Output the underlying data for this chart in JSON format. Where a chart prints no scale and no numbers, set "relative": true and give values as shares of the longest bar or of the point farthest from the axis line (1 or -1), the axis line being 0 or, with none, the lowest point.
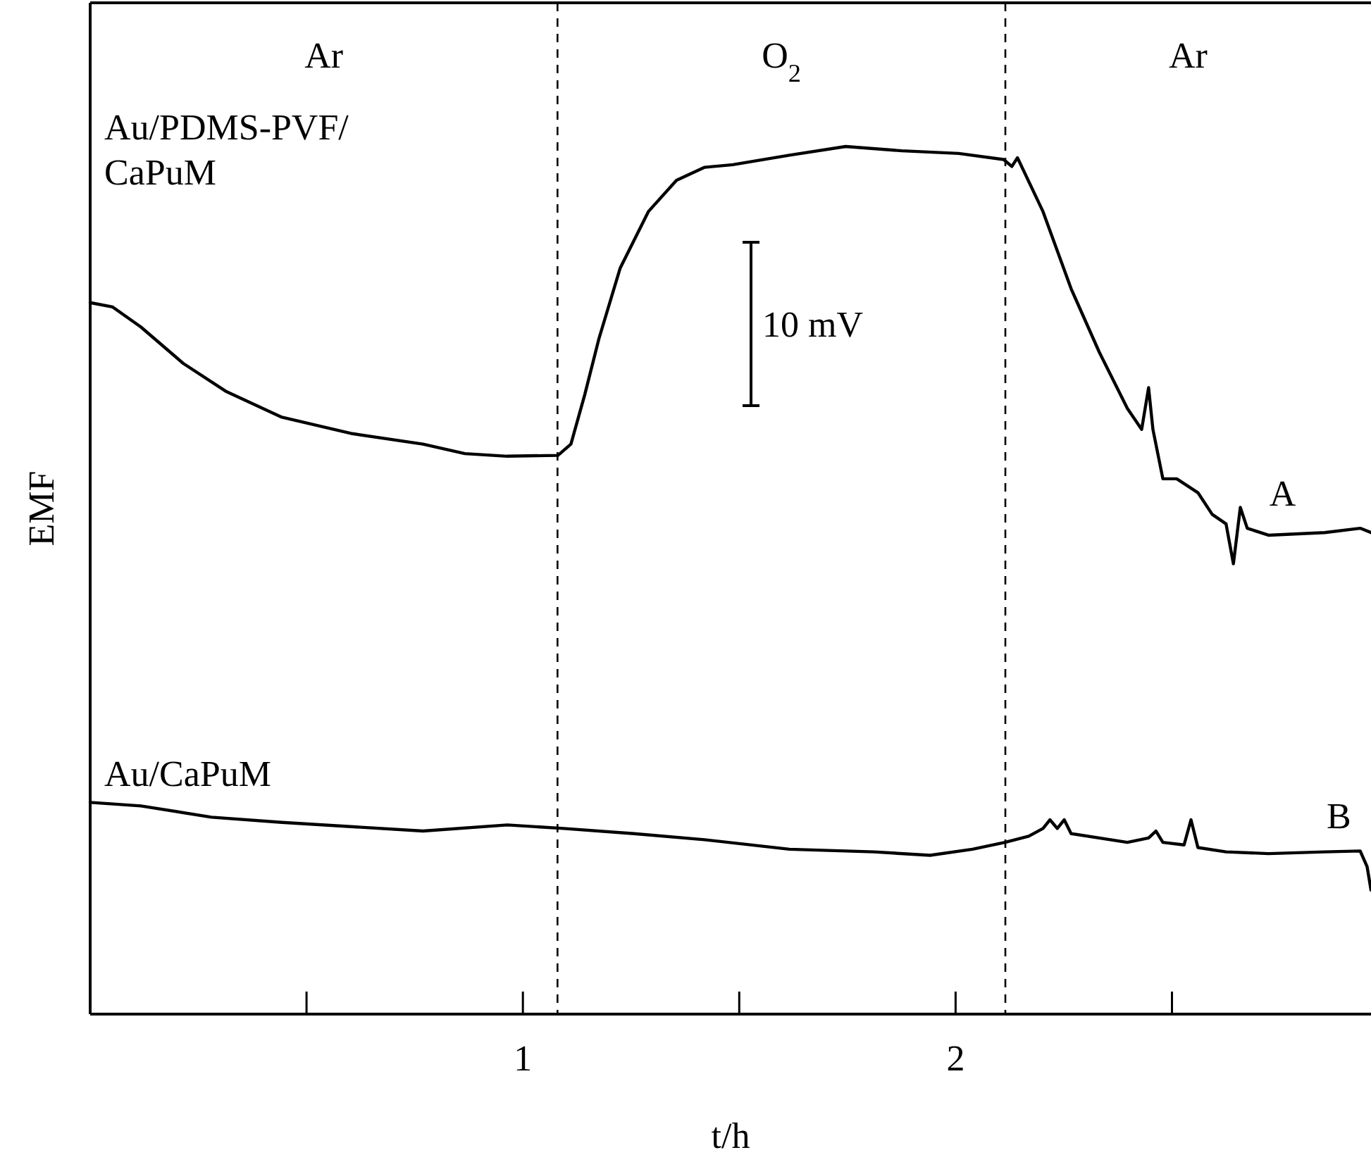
{
  "chart_data": {
    "type": "line",
    "relative": true,
    "xlabel": "t/h",
    "ylabel": "EMF",
    "xlim": [
      0,
      2.96
    ],
    "xticks": [
      {
        "value": 0.5,
        "label": null
      },
      1,
      {
        "value": 1.5,
        "label": null
      },
      2,
      {
        "value": 2.5,
        "label": null
      }
    ],
    "grid": false,
    "line_style": "solid",
    "tick_labels": "x",
    "ref_lines": [
      {
        "axis": "x",
        "value": 1.08,
        "line_style": "dashed"
      },
      {
        "axis": "x",
        "value": 2.115,
        "line_style": "dashed"
      }
    ],
    "annotations": [
      "Ar",
      "O$_{2}$",
      "Ar",
      "Au/PDMS-PVF/CaPuM",
      "Au/CaPuM",
      "10 mV"
    ],
    "series": [
      {
        "name": "A",
        "color": "#000000",
        "x": [
          0,
          0.052,
          0.117,
          0.215,
          0.313,
          0.443,
          0.606,
          0.769,
          0.866,
          0.964,
          1.081,
          1.111,
          1.143,
          1.176,
          1.225,
          1.29,
          1.355,
          1.42,
          1.485,
          1.616,
          1.746,
          1.876,
          2.007,
          2.111,
          2.13,
          2.143,
          2.163,
          2.202,
          2.267,
          2.332,
          2.397,
          2.43,
          2.446,
          2.456,
          2.479,
          2.511,
          2.56,
          2.593,
          2.625,
          2.642,
          2.658,
          2.674,
          2.723,
          2.853,
          2.935,
          2.96
        ],
        "values": [
          0.82,
          0.815,
          0.792,
          0.75,
          0.718,
          0.688,
          0.669,
          0.657,
          0.646,
          0.643,
          0.644,
          0.657,
          0.714,
          0.779,
          0.86,
          0.925,
          0.961,
          0.976,
          0.979,
          0.99,
          1.0,
          0.995,
          0.992,
          0.985,
          0.977,
          0.987,
          0.966,
          0.925,
          0.836,
          0.763,
          0.698,
          0.674,
          0.722,
          0.674,
          0.617,
          0.617,
          0.601,
          0.576,
          0.565,
          0.519,
          0.584,
          0.56,
          0.552,
          0.555,
          0.56,
          0.555
        ]
      },
      {
        "name": "B",
        "color": "#000000",
        "x": [
          0,
          0.117,
          0.28,
          0.443,
          0.769,
          0.964,
          1.094,
          1.257,
          1.42,
          1.616,
          1.811,
          1.941,
          2.039,
          2.114,
          2.169,
          2.202,
          2.218,
          2.235,
          2.251,
          2.267,
          2.397,
          2.446,
          2.463,
          2.479,
          2.528,
          2.544,
          2.56,
          2.625,
          2.723,
          2.853,
          2.935,
          2.951,
          2.96
        ],
        "values": [
          0.244,
          0.24,
          0.227,
          0.221,
          0.211,
          0.218,
          0.214,
          0.208,
          0.201,
          0.19,
          0.187,
          0.183,
          0.19,
          0.198,
          0.205,
          0.214,
          0.224,
          0.214,
          0.224,
          0.208,
          0.198,
          0.203,
          0.211,
          0.198,
          0.195,
          0.224,
          0.192,
          0.187,
          0.185,
          0.187,
          0.188,
          0.17,
          0.143
        ]
      }
    ]
  }
}
